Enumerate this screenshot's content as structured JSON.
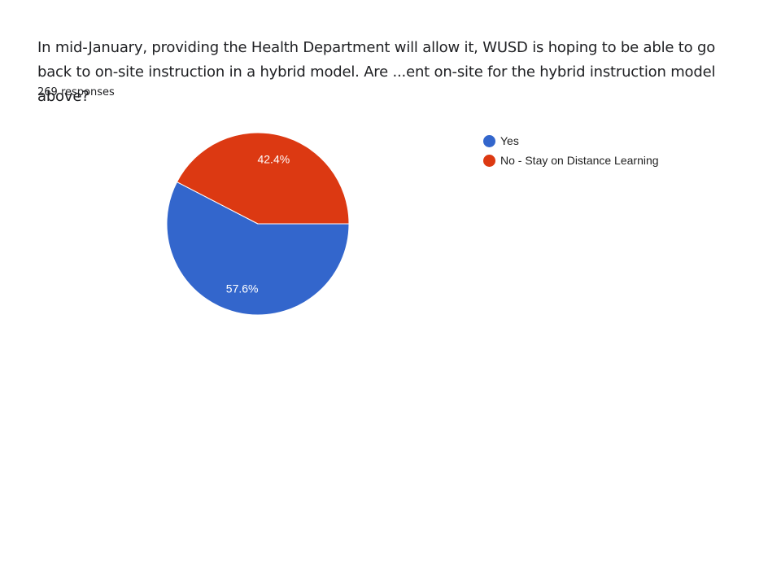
{
  "question": {
    "line1": "In mid-January, providing the Health Department will allow it, WUSD is hoping to be able to go",
    "line2": "back to on-site instruction in a hybrid model. Are ...ent on-site for the hybrid instruction model above?"
  },
  "responses_label": "269 responses",
  "chart_data": {
    "type": "pie",
    "categories": [
      "Yes",
      "No - Stay on Distance Learning"
    ],
    "values": [
      57.6,
      42.4
    ],
    "labels": [
      "57.6%",
      "42.4%"
    ],
    "colors": [
      "#3366cc",
      "#dc3912"
    ],
    "legend_position": "right"
  }
}
